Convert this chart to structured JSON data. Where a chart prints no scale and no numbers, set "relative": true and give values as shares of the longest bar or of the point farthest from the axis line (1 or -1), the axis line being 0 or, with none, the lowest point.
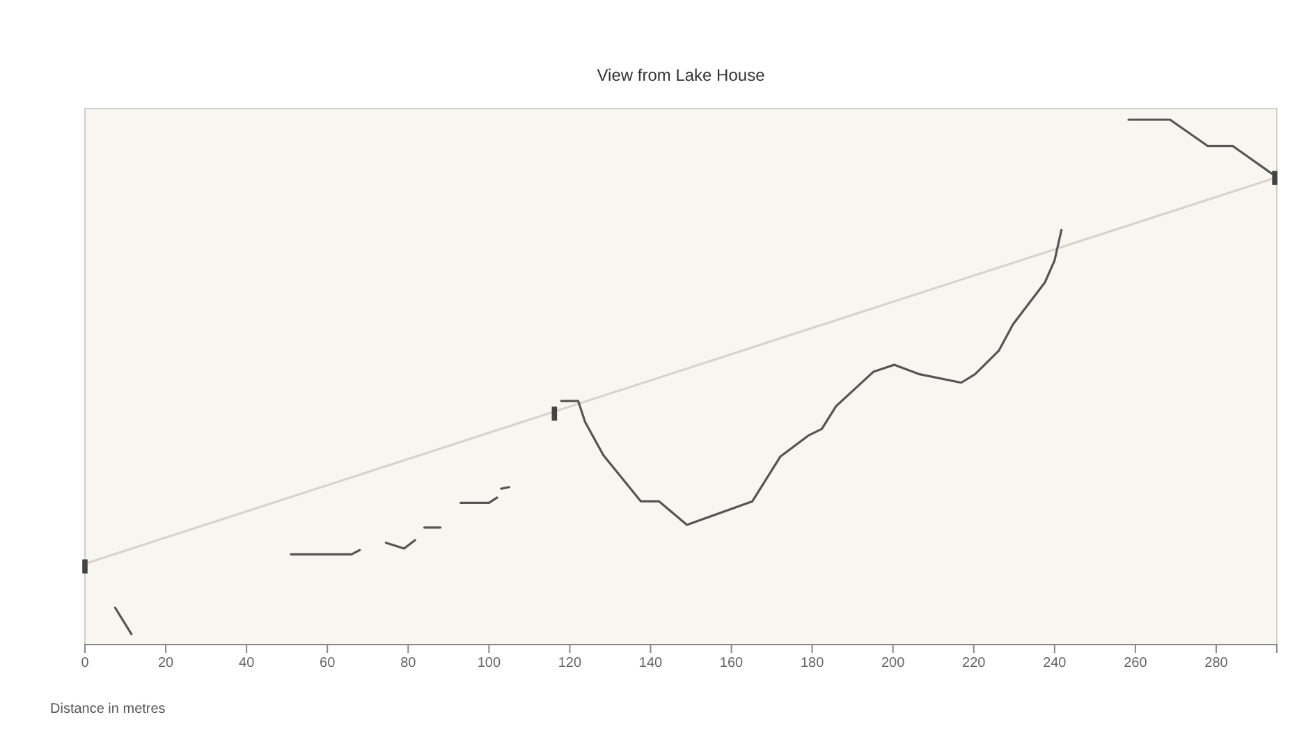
{
  "chart_data": {
    "type": "line",
    "title": "View from Lake House",
    "xlabel": "Distance in metres",
    "relative": true,
    "xlim": [
      0,
      295
    ],
    "xticks": [
      0,
      20,
      40,
      60,
      80,
      100,
      120,
      140,
      160,
      180,
      200,
      220,
      240,
      260,
      280
    ],
    "series": [
      {
        "color": "#d6d4cc",
        "x": [
          0,
          294.5
        ],
        "values": [
          0.154,
          0.889
        ]
      },
      {
        "color": "#555555",
        "x": [
          7.5,
          11.5,
          30,
          51,
          66,
          68,
          70,
          74.5,
          79,
          81.7,
          83,
          84,
          88,
          90,
          93,
          100,
          102,
          102.5,
          103,
          105,
          110,
          117.9,
          122.1,
          123.8,
          128.3,
          137.6,
          142.1,
          149.0,
          165.2,
          172.1,
          179.0,
          182.4,
          185.9,
          195.2,
          200.3,
          206.6,
          216.9,
          220.3,
          226.2,
          229.7,
          237.6,
          240,
          241.7,
          250,
          258.3,
          268.6,
          277.9,
          284.1,
          293.8
        ],
        "values": [
          0.07,
          0.02,
          null,
          0.172,
          0.172,
          0.18,
          null,
          0.194,
          0.183,
          0.199,
          null,
          0.223,
          0.223,
          null,
          0.27,
          0.27,
          0.28,
          null,
          0.297,
          0.3,
          null,
          0.464,
          0.464,
          0.424,
          0.361,
          0.273,
          0.273,
          0.228,
          0.273,
          0.358,
          0.398,
          0.411,
          0.454,
          0.52,
          0.533,
          0.515,
          0.499,
          0.515,
          0.56,
          0.61,
          0.69,
          0.732,
          0.79,
          null,
          1.0,
          1.0,
          0.95,
          0.95,
          0.897
        ]
      },
      {
        "type": "scatter",
        "marker": "square",
        "color": "#444444",
        "x": [
          0,
          116.2,
          294.5
        ],
        "values": [
          0.149,
          0.44,
          0.889
        ]
      }
    ]
  }
}
